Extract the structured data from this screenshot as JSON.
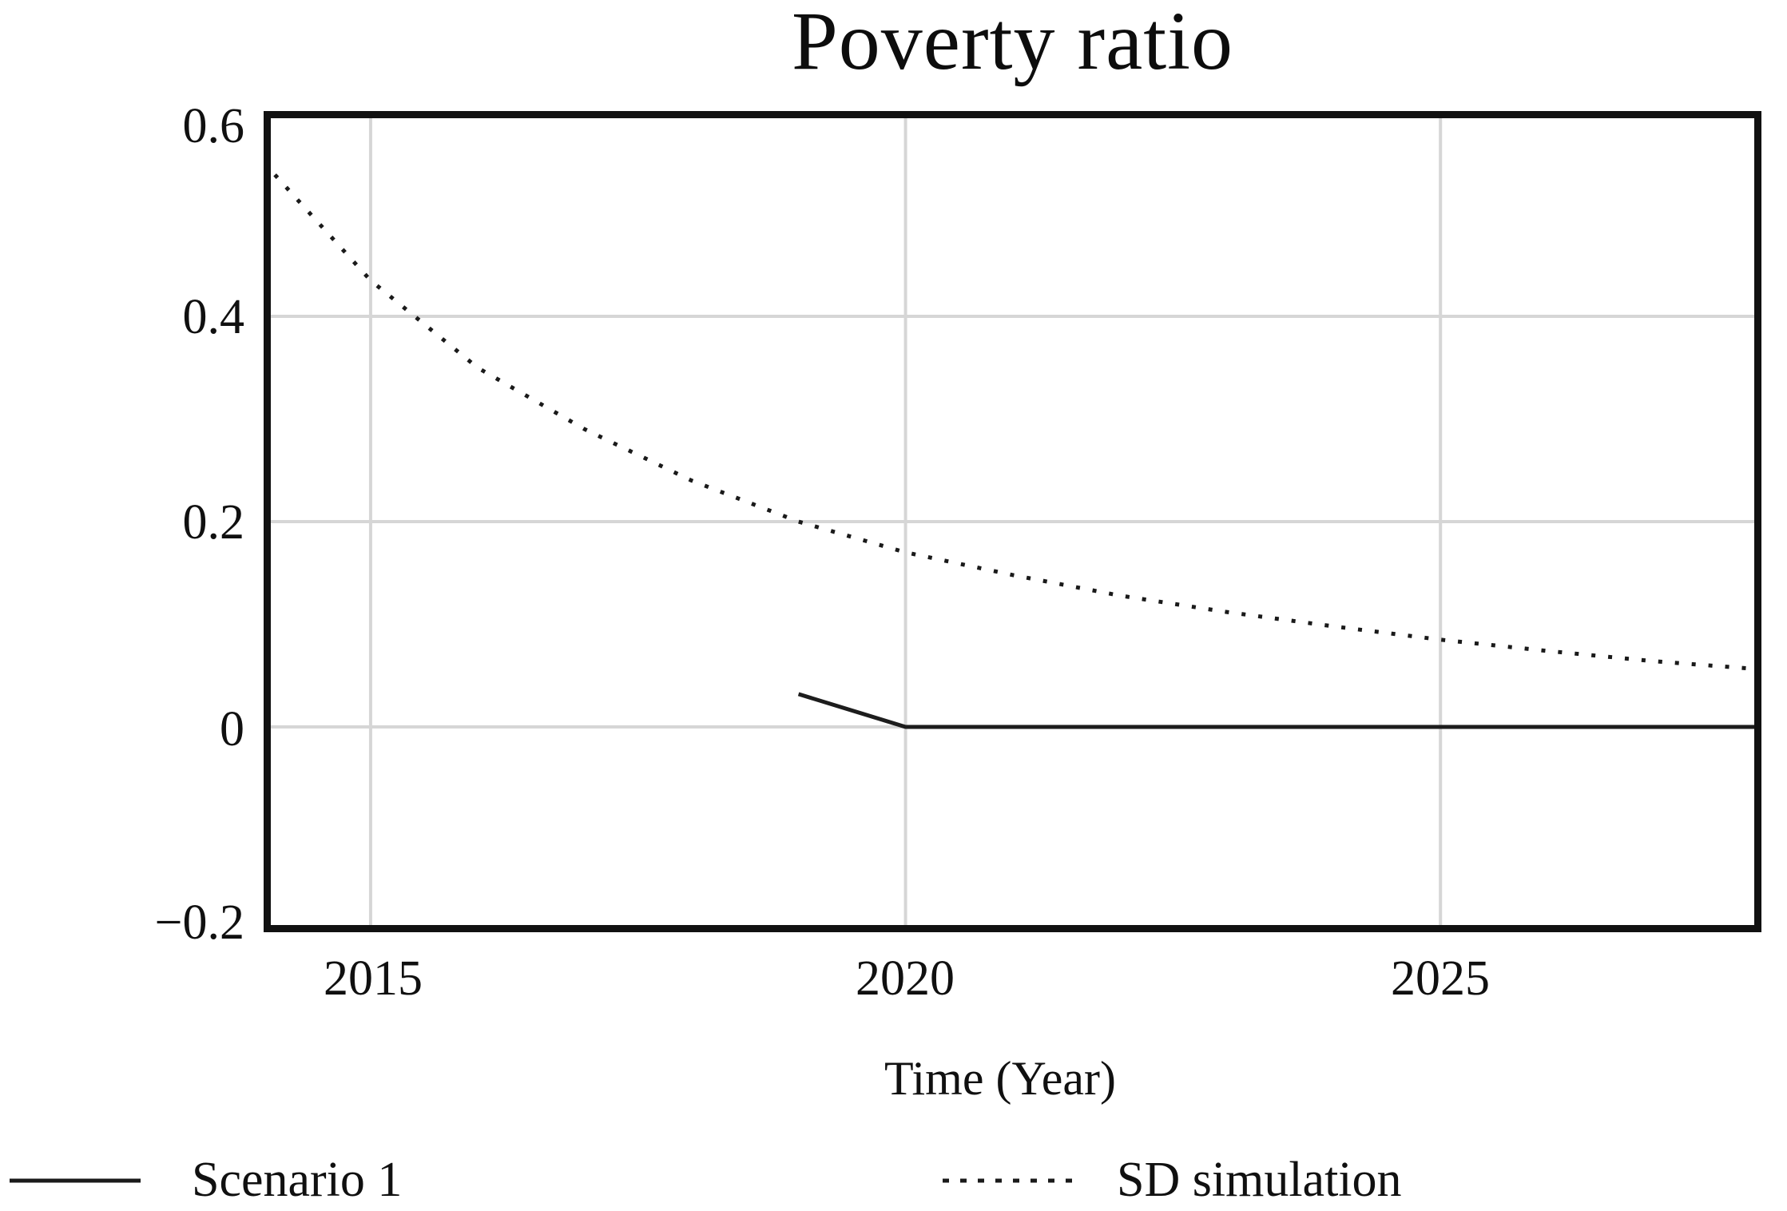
{
  "title": "Poverty ratio",
  "axes": {
    "y_ticks": [
      "0.6",
      "0.4",
      "0.2",
      "0",
      "−0.2"
    ],
    "x_ticks": [
      "2015",
      "2020",
      "2025"
    ],
    "x_label": "Time (Year)"
  },
  "legend": [
    {
      "label": "Scenario 1",
      "style": "solid"
    },
    {
      "label": "SD simulation",
      "style": "dotted"
    }
  ],
  "chart_data": {
    "type": "line",
    "title": "Poverty ratio",
    "xlabel": "Time (Year)",
    "ylabel": "",
    "xlim": [
      2014,
      2028
    ],
    "ylim": [
      -0.2,
      0.6
    ],
    "x_ticks": [
      2015,
      2020,
      2025
    ],
    "y_ticks": [
      0.6,
      0.4,
      0.2,
      0,
      -0.2
    ],
    "grid": true,
    "legend_position": "bottom",
    "colors": {
      "grid": "#d6d6d6",
      "frame": "#111111",
      "series": "#1a1a1a"
    },
    "series": [
      {
        "name": "Scenario 1",
        "style": "solid",
        "color": "#1d1d1d",
        "points": [
          [
            2019,
            0.032
          ],
          [
            2020,
            0.0
          ],
          [
            2028,
            0.0
          ]
        ]
      },
      {
        "name": "SD simulation",
        "style": "dotted",
        "color": "#1a1a1a",
        "points": [
          [
            2014,
            0.55
          ],
          [
            2015,
            0.435
          ],
          [
            2016,
            0.35
          ],
          [
            2017,
            0.29
          ],
          [
            2018,
            0.24
          ],
          [
            2019,
            0.2
          ],
          [
            2020,
            0.17
          ],
          [
            2021,
            0.148
          ],
          [
            2022,
            0.128
          ],
          [
            2023,
            0.112
          ],
          [
            2024,
            0.098
          ],
          [
            2025,
            0.085
          ],
          [
            2026,
            0.074
          ],
          [
            2027,
            0.064
          ],
          [
            2028,
            0.056
          ]
        ]
      }
    ]
  }
}
